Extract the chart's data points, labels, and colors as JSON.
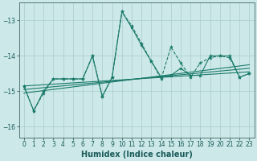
{
  "xlabel": "Humidex (Indice chaleur)",
  "bg_color": "#cce8e8",
  "grid_color": "#aacccc",
  "line_color": "#1a7a6a",
  "xlim": [
    -0.5,
    23.5
  ],
  "ylim": [
    -16.3,
    -12.5
  ],
  "yticks": [
    -16,
    -15,
    -14,
    -13
  ],
  "xticks": [
    0,
    1,
    2,
    3,
    4,
    5,
    6,
    7,
    8,
    9,
    10,
    11,
    12,
    13,
    14,
    15,
    16,
    17,
    18,
    19,
    20,
    21,
    22,
    23
  ],
  "series_zigzag1": {
    "x": [
      0,
      1,
      2,
      3,
      4,
      5,
      6,
      7,
      8,
      9,
      10,
      11,
      12,
      13,
      14,
      15,
      16,
      17,
      18,
      19,
      20,
      21,
      22,
      23
    ],
    "y": [
      -14.85,
      -15.55,
      -15.05,
      -14.65,
      -14.65,
      -14.65,
      -14.65,
      -14.0,
      -15.15,
      -14.6,
      -12.75,
      -13.15,
      -13.65,
      -14.15,
      -14.65,
      -13.75,
      -14.2,
      -14.6,
      -14.2,
      -14.05,
      -14.0,
      -14.05,
      -14.6,
      -14.5
    ]
  },
  "series_zigzag2": {
    "x": [
      0,
      1,
      2,
      3,
      4,
      5,
      6,
      7,
      8,
      9,
      10,
      11,
      12,
      13,
      14,
      15,
      16,
      17,
      18,
      19,
      20,
      21,
      22,
      23
    ],
    "y": [
      -14.85,
      -15.55,
      -15.0,
      -14.65,
      -14.65,
      -14.65,
      -14.65,
      -14.0,
      -15.15,
      -14.6,
      -12.75,
      -13.2,
      -13.7,
      -14.15,
      -14.6,
      -14.55,
      -14.35,
      -14.55,
      -14.55,
      -14.0,
      -14.0,
      -14.0,
      -14.6,
      -14.5
    ]
  },
  "series_smooth1": {
    "x": [
      0,
      23
    ],
    "y": [
      -14.85,
      -14.45
    ]
  },
  "series_smooth2": {
    "x": [
      0,
      23
    ],
    "y": [
      -14.95,
      -14.35
    ]
  },
  "series_smooth3": {
    "x": [
      0,
      23
    ],
    "y": [
      -15.05,
      -14.25
    ]
  }
}
